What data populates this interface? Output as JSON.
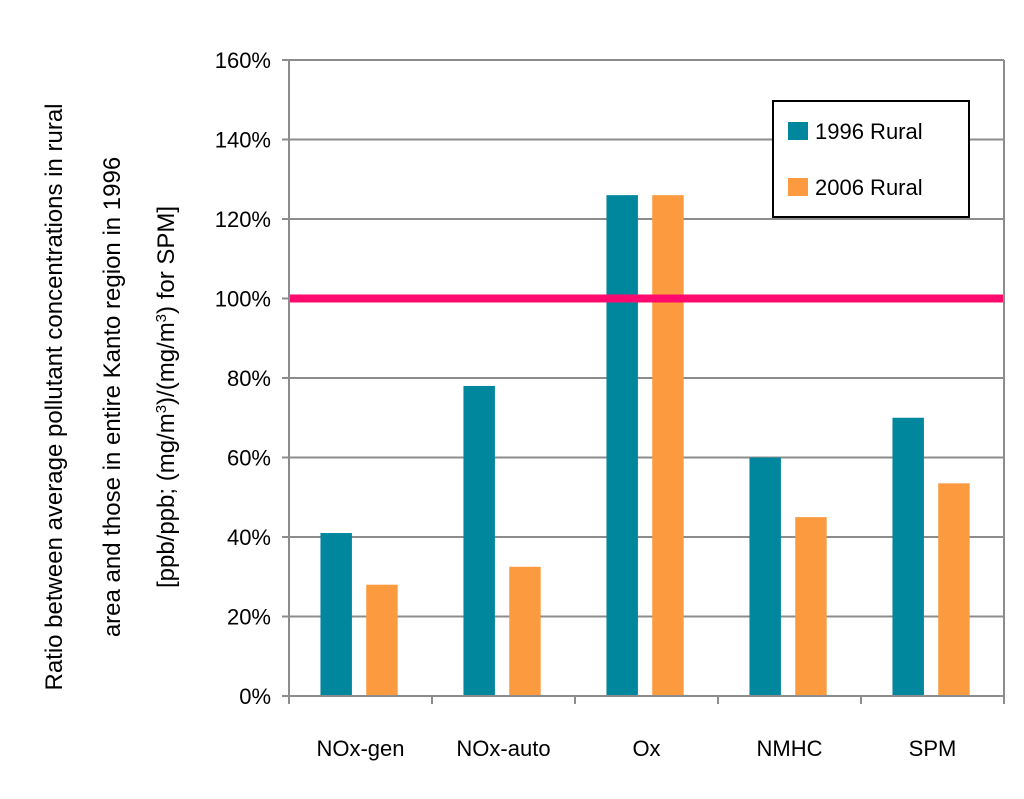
{
  "chart_data": {
    "type": "bar",
    "title": "",
    "categories": [
      "NOx-gen",
      "NOx-auto",
      "Ox",
      "NMHC",
      "SPM"
    ],
    "series": [
      {
        "name": "1996 Rural",
        "color": "#00879e",
        "values": [
          41,
          78,
          126,
          60,
          70
        ]
      },
      {
        "name": "2006 Rural",
        "color": "#fb9a3f",
        "values": [
          28,
          32.5,
          126,
          45,
          53.5
        ]
      }
    ],
    "reference_line": {
      "value": 100,
      "color": "#ff0a6e"
    },
    "y_ticks": [
      "0%",
      "20%",
      "40%",
      "60%",
      "80%",
      "100%",
      "120%",
      "140%",
      "160%"
    ],
    "y_tick_values": [
      0,
      20,
      40,
      60,
      80,
      100,
      120,
      140,
      160
    ],
    "ylim": [
      0,
      160
    ],
    "ylabel_lines": [
      "Ratio between average pollutant concentrations in rural",
      "area and those in entire Kanto region in 1996"
    ],
    "ylabel_units": {
      "pre": "[ppb/ppb; (mg/m",
      "sup1": "3",
      "mid": ")/(mg/m",
      "sup2": "3",
      "post": ")  for SPM]"
    },
    "xlabel": "",
    "grid": true,
    "legend_position": "top-right"
  }
}
